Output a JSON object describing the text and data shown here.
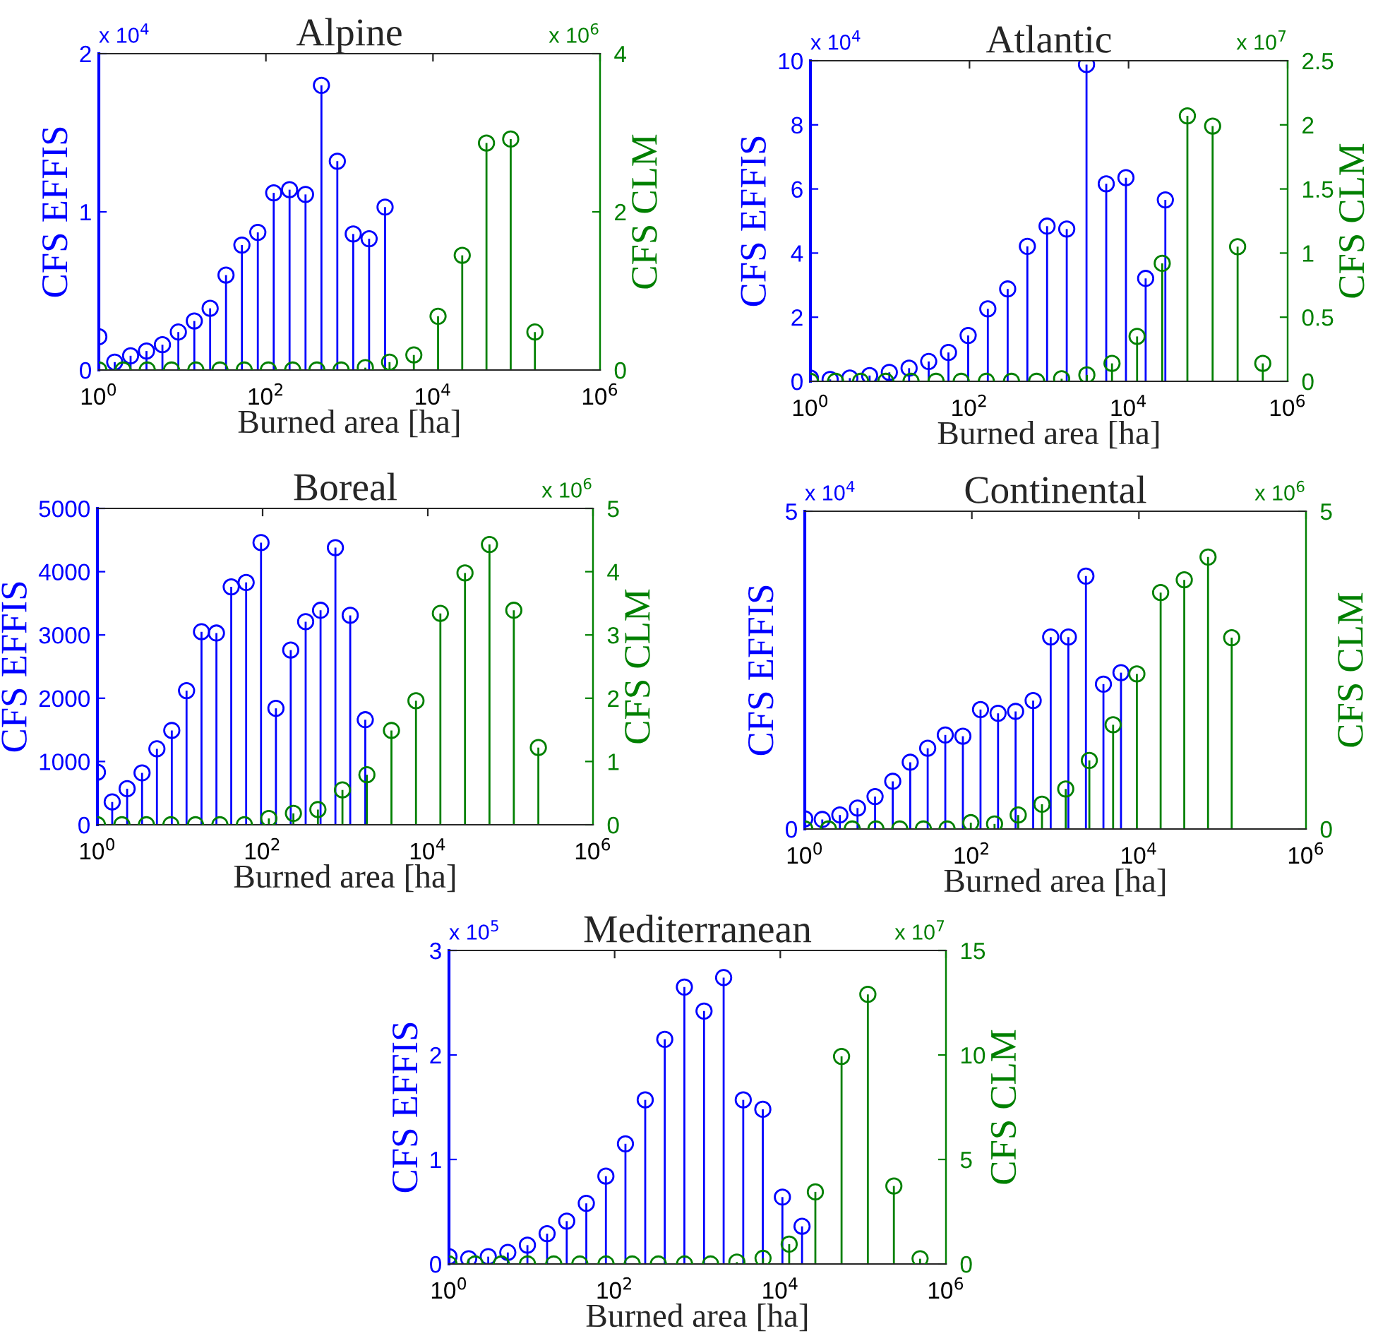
{
  "chart_data": [
    {
      "type": "lollipop",
      "title": "Alpine",
      "xlabel": "Burned area [ha]",
      "ylabel": "CFS EFFIS",
      "y2label": "CFS CLM",
      "log": "x",
      "marker": "circle",
      "grid": false,
      "xlim": [
        1,
        1000000
      ],
      "xticks": [
        {
          "value": 1,
          "label": "10$^{0}$"
        },
        {
          "value": 100,
          "label": "10$^{2}$"
        },
        {
          "value": 10000,
          "label": "10$^{4}$"
        },
        {
          "value": 1000000,
          "label": "10$^{6}$"
        }
      ],
      "ylim": [
        0,
        2
      ],
      "yticks": [
        0,
        1,
        2
      ],
      "y2lim": [
        0,
        4
      ],
      "y2ticks": [
        0,
        2,
        4
      ],
      "annotations": [
        "x 10$^{4}$",
        "x 10$^{6}$"
      ],
      "series": [
        {
          "color": "#0000ff",
          "x": [
            1,
            1.55,
            2.4,
            3.72,
            5.77,
            8.95,
            13.9,
            21.5,
            33.3,
            51.6,
            80.0,
            124,
            192,
            298,
            462,
            716,
            1110,
            1720,
            2670
          ],
          "values": [
            0.21,
            0.05,
            0.09,
            0.12,
            0.16,
            0.24,
            0.31,
            0.39,
            0.6,
            0.79,
            0.87,
            1.12,
            1.14,
            1.11,
            1.8,
            1.32,
            0.86,
            0.83,
            1.03
          ]
        },
        {
          "color": "#008000",
          "axis": "y2",
          "x": [
            1,
            1.95,
            3.8,
            7.41,
            14.5,
            28.2,
            55.0,
            107,
            209,
            408,
            795,
            1550,
            3020,
            5900,
            11500,
            22400,
            43700,
            85200,
            166000
          ],
          "values": [
            0,
            0,
            0,
            0,
            0,
            0,
            0,
            0,
            0,
            0,
            0,
            0.03,
            0.1,
            0.19,
            0.68,
            1.45,
            2.87,
            2.92,
            0.48
          ]
        }
      ]
    },
    {
      "type": "lollipop",
      "title": "Atlantic",
      "xlabel": "Burned area [ha]",
      "ylabel": "CFS EFFIS",
      "y2label": "CFS CLM",
      "log": "x",
      "marker": "circle",
      "grid": false,
      "xlim": [
        1,
        1000000
      ],
      "xticks": [
        {
          "value": 1,
          "label": "10$^{0}$"
        },
        {
          "value": 100,
          "label": "10$^{2}$"
        },
        {
          "value": 10000,
          "label": "10$^{4}$"
        },
        {
          "value": 1000000,
          "label": "10$^{6}$"
        }
      ],
      "ylim": [
        0,
        10
      ],
      "yticks": [
        0,
        2,
        4,
        6,
        8,
        10
      ],
      "y2lim": [
        0,
        2.5
      ],
      "y2ticks": [
        0,
        0.5,
        1,
        1.5,
        2,
        2.5
      ],
      "annotations": [
        "x 10$^{4}$",
        "x 10$^{7}$"
      ],
      "series": [
        {
          "color": "#0000ff",
          "x": [
            1,
            1.77,
            3.13,
            5.55,
            9.82,
            17.4,
            30.7,
            54.4,
            96.2,
            170,
            302,
            534,
            945,
            1670,
            2960,
            5240,
            9270,
            16400,
            29000
          ],
          "values": [
            0.1,
            0.06,
            0.1,
            0.18,
            0.28,
            0.41,
            0.62,
            0.9,
            1.43,
            2.26,
            2.88,
            4.21,
            4.84,
            4.75,
            9.88,
            6.16,
            6.35,
            3.21,
            5.66
          ]
        },
        {
          "color": "#008000",
          "axis": "y2",
          "x": [
            1,
            2.07,
            4.28,
            8.87,
            18.4,
            38.0,
            78.7,
            163,
            337,
            698,
            1440,
            2990,
            6190,
            12800,
            26500,
            54900,
            114000,
            235000,
            487000
          ],
          "values": [
            0,
            0,
            0,
            0,
            0,
            0,
            0,
            0,
            0,
            0,
            0.02,
            0.05,
            0.14,
            0.35,
            0.92,
            2.07,
            1.99,
            1.05,
            0.14
          ]
        }
      ]
    },
    {
      "type": "lollipop",
      "title": "Boreal",
      "xlabel": "Burned area [ha]",
      "ylabel": "CFS EFFIS",
      "y2label": "CFS CLM",
      "log": "x",
      "marker": "circle",
      "grid": false,
      "xlim": [
        1,
        1000000
      ],
      "xticks": [
        {
          "value": 1,
          "label": "10$^{0}$"
        },
        {
          "value": 100,
          "label": "10$^{2}$"
        },
        {
          "value": 10000,
          "label": "10$^{4}$"
        },
        {
          "value": 1000000,
          "label": "10$^{6}$"
        }
      ],
      "ylim": [
        0,
        5000
      ],
      "yticks": [
        0,
        1000,
        2000,
        3000,
        4000,
        5000
      ],
      "y2lim": [
        0,
        5
      ],
      "y2ticks": [
        0,
        1,
        2,
        3,
        4,
        5
      ],
      "annotations": [
        "x 10$^{6}$"
      ],
      "series": [
        {
          "color": "#0000ff",
          "x": [
            1,
            1.51,
            2.29,
            3.47,
            5.25,
            7.95,
            12.0,
            18.2,
            27.6,
            41.7,
            63.2,
            95.7,
            145,
            219,
            332,
            503,
            761,
            1150,
            1750
          ],
          "values": [
            830,
            360,
            570,
            820,
            1200,
            1490,
            2120,
            3050,
            3030,
            3760,
            3830,
            4460,
            1840,
            2760,
            3210,
            3390,
            4380,
            3310,
            1660
          ]
        },
        {
          "color": "#008000",
          "axis": "y2",
          "x": [
            1,
            1.98,
            3.92,
            7.76,
            15.4,
            30.4,
            60.2,
            119,
            236,
            467,
            926,
            1830,
            3630,
            7190,
            14200,
            28200,
            55800,
            110000,
            218000
          ],
          "values": [
            0,
            0,
            0,
            0,
            0,
            0,
            0,
            0.1,
            0.18,
            0.24,
            0.55,
            0.79,
            1.49,
            1.96,
            3.34,
            3.98,
            4.43,
            3.39,
            1.22
          ]
        }
      ]
    },
    {
      "type": "lollipop",
      "title": "Continental",
      "xlabel": "Burned area [ha]",
      "ylabel": "CFS EFFIS",
      "y2label": "CFS CLM",
      "log": "x",
      "marker": "circle",
      "grid": false,
      "xlim": [
        1,
        1000000
      ],
      "xticks": [
        {
          "value": 1,
          "label": "10$^{0}$"
        },
        {
          "value": 100,
          "label": "10$^{2}$"
        },
        {
          "value": 10000,
          "label": "10$^{4}$"
        },
        {
          "value": 1000000,
          "label": "10$^{6}$"
        }
      ],
      "ylim": [
        0,
        5
      ],
      "yticks": [
        0,
        5
      ],
      "y2lim": [
        0,
        5
      ],
      "y2ticks": [
        0,
        5
      ],
      "annotations": [
        "x 10$^{4}$",
        "x 10$^{6}$"
      ],
      "series": [
        {
          "color": "#0000ff",
          "x": [
            1,
            1.62,
            2.63,
            4.28,
            6.94,
            11.3,
            18.3,
            29.6,
            48.1,
            78.1,
            127,
            206,
            334,
            542,
            879,
            1430,
            2320,
            3760,
            6100
          ],
          "values": [
            0.16,
            0.15,
            0.22,
            0.33,
            0.51,
            0.75,
            1.05,
            1.27,
            1.48,
            1.46,
            1.88,
            1.82,
            1.85,
            2.02,
            3.02,
            3.02,
            3.98,
            2.28,
            2.46
          ]
        },
        {
          "color": "#008000",
          "axis": "y2",
          "x": [
            1,
            1.92,
            3.7,
            7.11,
            13.7,
            26.3,
            50.5,
            97.2,
            187,
            359,
            691,
            1330,
            2550,
            4910,
            9450,
            18200,
            34900,
            67200,
            129000
          ],
          "values": [
            0,
            0,
            0,
            0,
            0,
            0,
            0,
            0.1,
            0.08,
            0.22,
            0.39,
            0.63,
            1.08,
            1.64,
            2.44,
            3.72,
            3.92,
            4.28,
            3.01
          ]
        }
      ]
    },
    {
      "type": "lollipop",
      "title": "Mediterranean",
      "xlabel": "Burned area [ha]",
      "ylabel": "CFS EFFIS",
      "y2label": "CFS CLM",
      "log": "x",
      "marker": "circle",
      "grid": false,
      "xlim": [
        1,
        1000000
      ],
      "xticks": [
        {
          "value": 1,
          "label": "10$^{0}$"
        },
        {
          "value": 100,
          "label": "10$^{2}$"
        },
        {
          "value": 10000,
          "label": "10$^{4}$"
        },
        {
          "value": 1000000,
          "label": "10$^{6}$"
        }
      ],
      "ylim": [
        0,
        3
      ],
      "yticks": [
        0,
        1,
        2,
        3
      ],
      "y2lim": [
        0,
        15
      ],
      "y2ticks": [
        0,
        5,
        10,
        15
      ],
      "annotations": [
        "x 10$^{5}$",
        "x 10$^{7}$"
      ],
      "series": [
        {
          "color": "#0000ff",
          "x": [
            1,
            1.73,
            2.98,
            5.13,
            8.85,
            15.3,
            26.4,
            45.5,
            78.4,
            135,
            234,
            403,
            695,
            1200,
            2070,
            3570,
            6150,
            10600,
            18300
          ],
          "values": [
            0.07,
            0.05,
            0.07,
            0.11,
            0.18,
            0.29,
            0.41,
            0.58,
            0.84,
            1.15,
            1.57,
            2.15,
            2.65,
            2.42,
            2.74,
            1.57,
            1.48,
            0.64,
            0.36
          ]
        },
        {
          "color": "#008000",
          "axis": "y2",
          "x": [
            1,
            2.07,
            4.28,
            8.87,
            18.4,
            38.0,
            78.7,
            163,
            337,
            698,
            1440,
            2990,
            6190,
            12800,
            26500,
            54900,
            114000,
            235000,
            487000
          ],
          "values": [
            0,
            0,
            0,
            0,
            0,
            0,
            0,
            0,
            0,
            0,
            0,
            0.09,
            0.27,
            0.95,
            3.45,
            9.93,
            12.9,
            3.73,
            0.25
          ]
        }
      ]
    }
  ]
}
